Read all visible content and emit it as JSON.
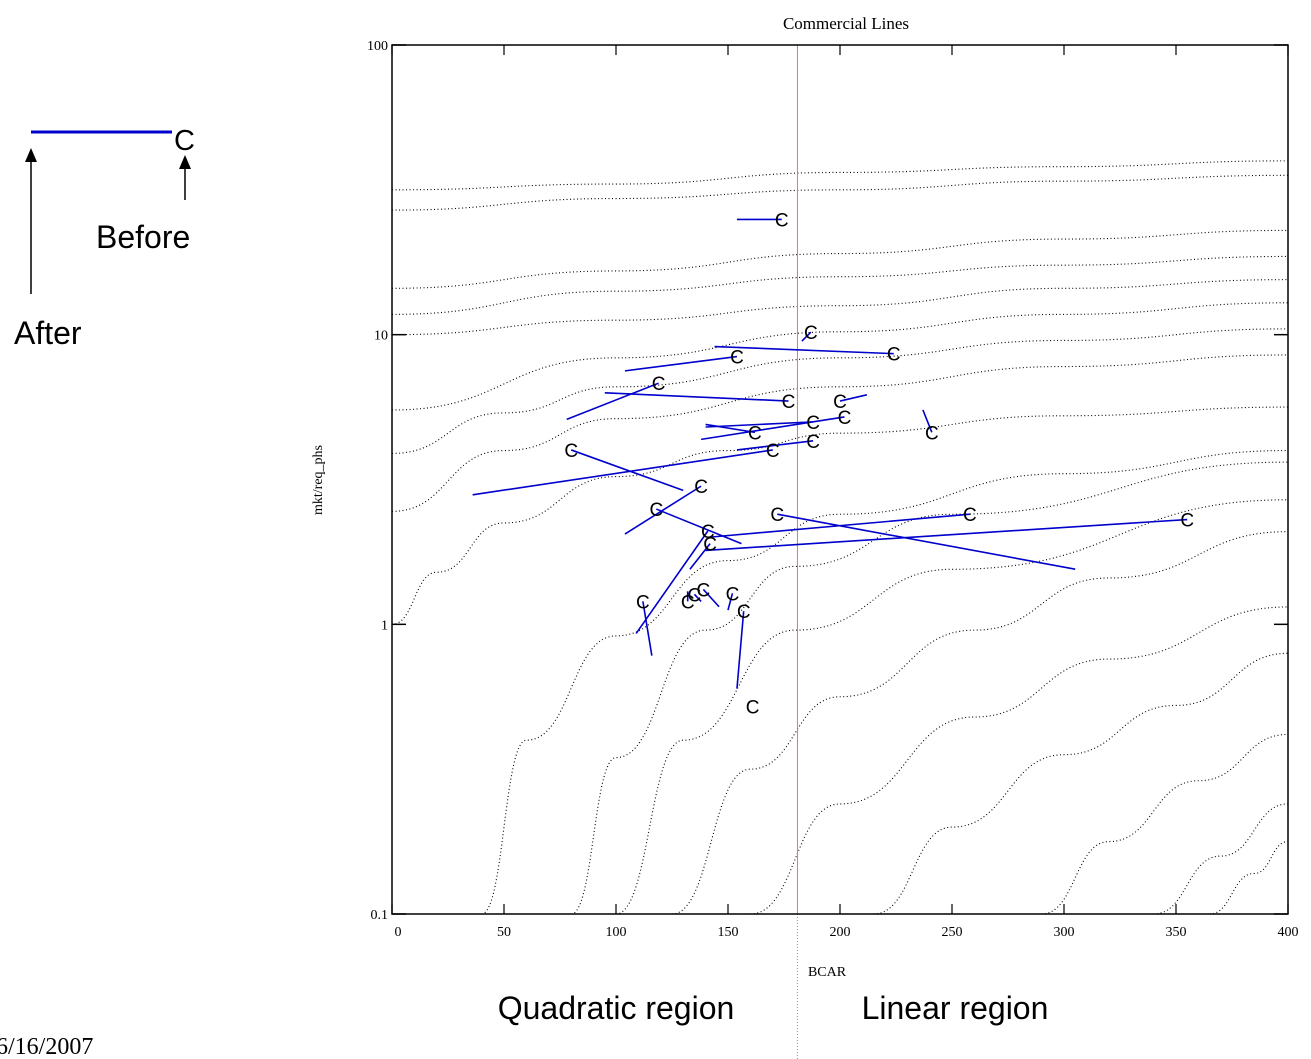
{
  "chart_data": {
    "type": "scatter",
    "title": "Commercial Lines",
    "xlabel": "BCAR",
    "ylabel": "mkt/req_phs",
    "xlim": [
      0,
      400
    ],
    "ylim": [
      0.1,
      100
    ],
    "y_scale": "log",
    "x_ticks": [
      "0",
      "50",
      "100",
      "150",
      "200",
      "250",
      "300",
      "350",
      "400"
    ],
    "y_ticks": [
      "0.1",
      "1",
      "10",
      "100"
    ],
    "grid": false,
    "threshold_x": 181,
    "marker": "C",
    "series": [
      {
        "name": "Before",
        "points": [
          [
            174,
            25
          ],
          [
            187,
            10.2
          ],
          [
            224,
            8.6
          ],
          [
            154,
            8.4
          ],
          [
            119,
            6.8
          ],
          [
            177,
            5.9
          ],
          [
            200,
            5.9
          ],
          [
            188,
            5
          ],
          [
            202,
            5.2
          ],
          [
            241,
            4.6
          ],
          [
            162,
            4.6
          ],
          [
            188,
            4.3
          ],
          [
            170,
            4
          ],
          [
            80,
            4
          ],
          [
            138,
            3
          ],
          [
            118,
            2.5
          ],
          [
            172,
            2.4
          ],
          [
            258,
            2.4
          ],
          [
            355,
            2.3
          ],
          [
            141,
            2.1
          ],
          [
            142,
            1.9
          ],
          [
            112,
            1.2
          ],
          [
            132,
            1.2
          ],
          [
            135,
            1.27
          ],
          [
            139,
            1.32
          ],
          [
            152,
            1.28
          ],
          [
            157,
            1.11
          ],
          [
            161,
            0.52
          ]
        ]
      },
      {
        "name": "After",
        "points": [
          [
            154,
            25
          ],
          [
            183,
            9.5
          ],
          [
            144,
            9.1
          ],
          [
            104,
            7.5
          ],
          [
            78,
            5.1
          ],
          [
            95,
            6.3
          ],
          [
            212,
            6.2
          ],
          [
            140,
            4.8
          ],
          [
            138,
            4.35
          ],
          [
            237,
            5.5
          ],
          [
            140,
            4.9
          ],
          [
            154,
            4
          ],
          [
            36,
            2.8
          ],
          [
            130,
            2.9
          ],
          [
            104,
            2.05
          ],
          [
            156,
            1.9
          ],
          [
            305,
            1.55
          ],
          [
            142,
            2
          ],
          [
            140,
            1.8
          ],
          [
            109,
            0.93
          ],
          [
            133,
            1.55
          ],
          [
            116,
            0.78
          ],
          [
            132,
            1.3
          ],
          [
            138,
            1.2
          ],
          [
            146,
            1.15
          ],
          [
            150,
            1.12
          ],
          [
            154,
            0.6
          ]
        ]
      }
    ],
    "reference_curves_log10": [
      [
        [
          0,
          1.5
        ],
        [
          100,
          1.52
        ],
        [
          200,
          1.56
        ],
        [
          300,
          1.58
        ],
        [
          400,
          1.6
        ]
      ],
      [
        [
          0,
          1.43
        ],
        [
          100,
          1.47
        ],
        [
          200,
          1.5
        ],
        [
          300,
          1.53
        ],
        [
          400,
          1.55
        ]
      ],
      [
        [
          0,
          1.16
        ],
        [
          100,
          1.22
        ],
        [
          200,
          1.28
        ],
        [
          300,
          1.33
        ],
        [
          400,
          1.36
        ]
      ],
      [
        [
          0,
          1.07
        ],
        [
          100,
          1.15
        ],
        [
          200,
          1.2
        ],
        [
          300,
          1.24
        ],
        [
          400,
          1.27
        ]
      ],
      [
        [
          0,
          1.0
        ],
        [
          100,
          1.05
        ],
        [
          200,
          1.1
        ],
        [
          300,
          1.16
        ],
        [
          400,
          1.19
        ]
      ],
      [
        [
          0,
          0.74
        ],
        [
          100,
          0.92
        ],
        [
          200,
          1.01
        ],
        [
          300,
          1.07
        ],
        [
          400,
          1.11
        ]
      ],
      [
        [
          0,
          0.59
        ],
        [
          50,
          0.73
        ],
        [
          100,
          0.82
        ],
        [
          200,
          0.92
        ],
        [
          300,
          0.98
        ],
        [
          400,
          1.02
        ]
      ],
      [
        [
          0,
          0.39
        ],
        [
          50,
          0.6
        ],
        [
          100,
          0.71
        ],
        [
          200,
          0.82
        ],
        [
          300,
          0.89
        ],
        [
          400,
          0.93
        ]
      ],
      [
        [
          0,
          0.0
        ],
        [
          20,
          0.18
        ],
        [
          50,
          0.35
        ],
        [
          100,
          0.51
        ],
        [
          150,
          0.6
        ],
        [
          200,
          0.66
        ],
        [
          300,
          0.72
        ],
        [
          400,
          0.75
        ]
      ],
      [
        [
          40,
          -1
        ],
        [
          60,
          -0.4
        ],
        [
          100,
          -0.04
        ],
        [
          150,
          0.22
        ],
        [
          200,
          0.38
        ],
        [
          300,
          0.52
        ],
        [
          400,
          0.6
        ]
      ],
      [
        [
          80,
          -1
        ],
        [
          100,
          -0.46
        ],
        [
          140,
          -0.02
        ],
        [
          180,
          0.2
        ],
        [
          250,
          0.38
        ],
        [
          400,
          0.56
        ]
      ],
      [
        [
          100,
          -1
        ],
        [
          130,
          -0.4
        ],
        [
          180,
          -0.02
        ],
        [
          250,
          0.19
        ],
        [
          400,
          0.43
        ]
      ],
      [
        [
          125,
          -1
        ],
        [
          160,
          -0.5
        ],
        [
          200,
          -0.25
        ],
        [
          260,
          -0.02
        ],
        [
          320,
          0.16
        ],
        [
          400,
          0.32
        ]
      ],
      [
        [
          160,
          -1
        ],
        [
          200,
          -0.62
        ],
        [
          260,
          -0.32
        ],
        [
          320,
          -0.12
        ],
        [
          400,
          0.06
        ]
      ],
      [
        [
          215,
          -1
        ],
        [
          250,
          -0.7
        ],
        [
          300,
          -0.45
        ],
        [
          350,
          -0.28
        ],
        [
          400,
          -0.1
        ]
      ],
      [
        [
          290,
          -1
        ],
        [
          320,
          -0.75
        ],
        [
          360,
          -0.54
        ],
        [
          400,
          -0.38
        ]
      ],
      [
        [
          340,
          -1
        ],
        [
          370,
          -0.8
        ],
        [
          400,
          -0.62
        ]
      ],
      [
        [
          365,
          -1
        ],
        [
          385,
          -0.86
        ],
        [
          400,
          -0.75
        ]
      ]
    ]
  },
  "annotations": {
    "legend_marker": "C",
    "before_label": "Before",
    "after_label": "After",
    "quadratic_label": "Quadratic region",
    "linear_label": "Linear region",
    "date": "6/16/2007"
  },
  "colors": {
    "series_line": "#0000cc",
    "threshold": "#ff6666",
    "curves": "#000000"
  }
}
